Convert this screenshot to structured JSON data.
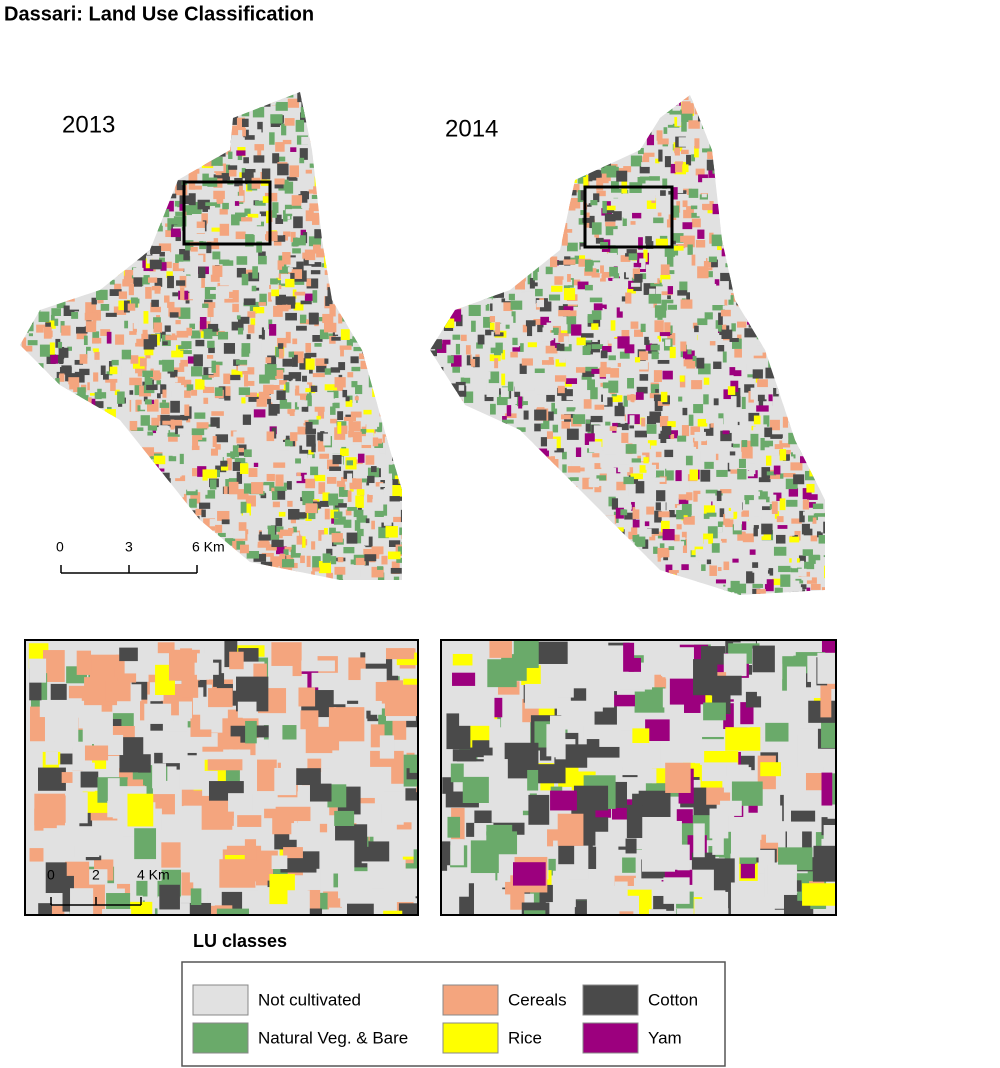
{
  "title": "Dassari: Land Use Classification",
  "maps": [
    {
      "year": "2013"
    },
    {
      "year": "2014"
    }
  ],
  "scale_bars": {
    "overview": {
      "labels": [
        "0",
        "3",
        "6 Km"
      ]
    },
    "inset": {
      "labels": [
        "0",
        "2",
        "4 Km"
      ]
    }
  },
  "legend": {
    "title": "LU classes",
    "items": [
      {
        "label": "Not cultivated",
        "color": "#e1e1e1"
      },
      {
        "label": "Natural Veg. &  Bare",
        "color": "#6aaa6a"
      },
      {
        "label": "Cereals",
        "color": "#f4a57e"
      },
      {
        "label": "Rice",
        "color": "#ffff00"
      },
      {
        "label": "Cotton",
        "color": "#4a4a4a"
      },
      {
        "label": "Yam",
        "color": "#9c007e"
      }
    ]
  }
}
